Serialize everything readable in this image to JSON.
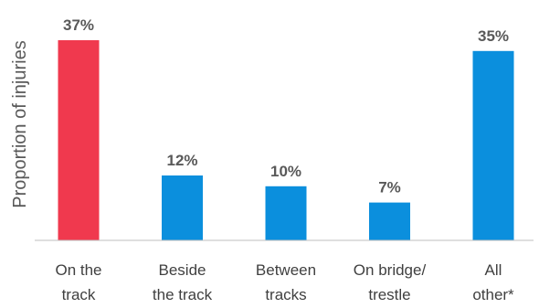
{
  "chart_data": {
    "type": "bar",
    "title": "",
    "xlabel": "",
    "ylabel": "Proportion of injuries",
    "ylim": [
      0,
      40
    ],
    "grid": false,
    "legend": "none",
    "categories": [
      [
        "On the",
        "track"
      ],
      [
        "Beside",
        "the track"
      ],
      [
        "Between",
        "tracks"
      ],
      [
        "On bridge/",
        "trestle"
      ],
      [
        "All",
        "other*"
      ]
    ],
    "values": [
      37,
      12,
      10,
      7,
      35
    ],
    "data_labels": [
      "37%",
      "12%",
      "10%",
      "7%",
      "35%"
    ],
    "colors": [
      "#f0394e",
      "#0b8fdd",
      "#0b8fdd",
      "#0b8fdd",
      "#0b8fdd"
    ]
  }
}
